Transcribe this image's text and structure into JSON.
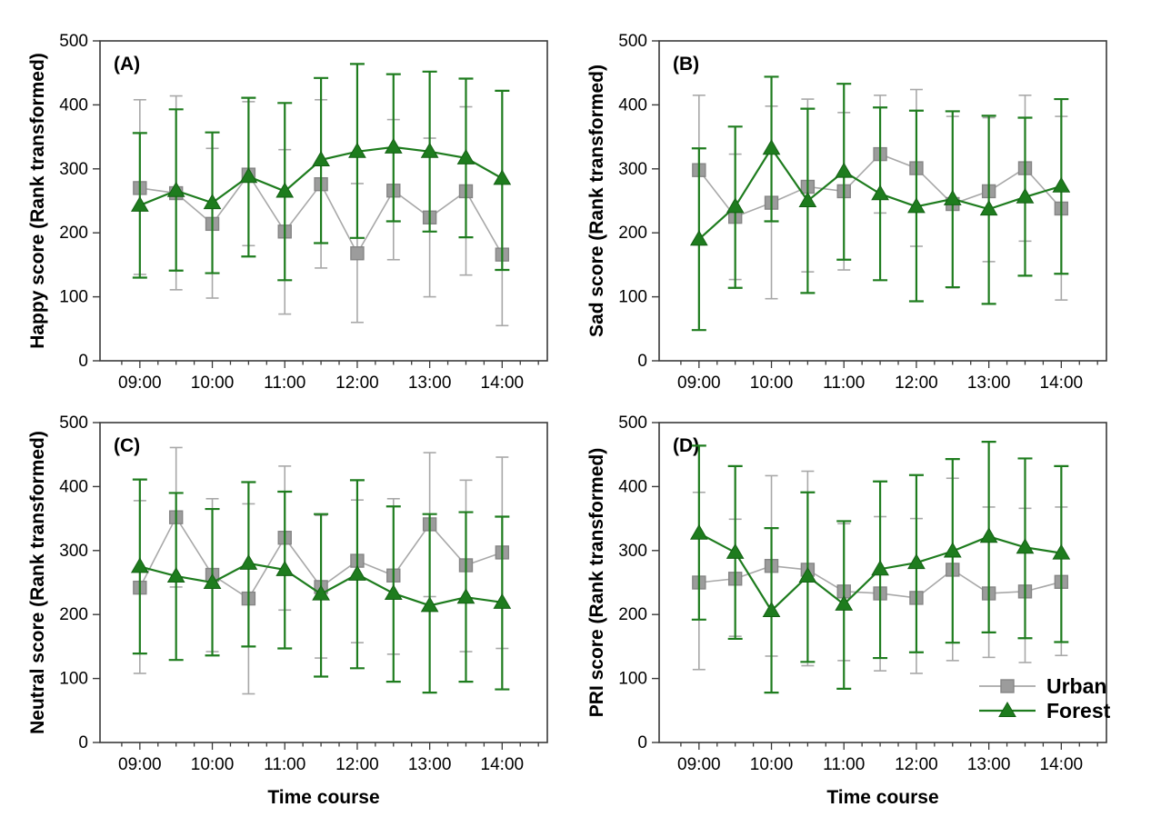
{
  "figure": {
    "background": "#ffffff",
    "x_axis_label": "Time course",
    "y_tick_values": [
      0,
      100,
      200,
      300,
      400,
      500
    ],
    "x_major_tick_labels": [
      "09:00",
      "10:00",
      "11:00",
      "12:00",
      "13:00",
      "14:00"
    ],
    "colors": {
      "urban_marker_fill": "#9c9c9c",
      "urban_marker_edge": "#858585",
      "urban_line": "#a8a8a8",
      "forest_green": "#1e7c1e",
      "forest_edge": "#136113",
      "axis_frame": "#3a3a3a",
      "text": "#000000"
    },
    "legend": {
      "panel": "(D)",
      "items": [
        {
          "label": "Urban",
          "series": "Urban",
          "marker": "square"
        },
        {
          "label": "Forest",
          "series": "Forest",
          "marker": "triangle"
        }
      ]
    }
  },
  "chart_data": [
    {
      "type": "line",
      "panel_label": "(A)",
      "ylabel": "Happy score (Rank transformed)",
      "xlabel": "",
      "ylim": [
        0,
        500
      ],
      "x": [
        "09:00",
        "09:30",
        "10:00",
        "10:30",
        "11:00",
        "11:30",
        "12:00",
        "12:30",
        "13:00",
        "13:30",
        "14:00"
      ],
      "series": [
        {
          "name": "Urban",
          "marker": "square",
          "values": [
            270,
            262,
            214,
            291,
            202,
            276,
            168,
            266,
            224,
            265,
            166
          ],
          "err_upper": [
            408,
            414,
            332,
            405,
            330,
            408,
            277,
            377,
            348,
            397,
            277
          ],
          "err_lower": [
            135,
            111,
            98,
            180,
            73,
            145,
            60,
            158,
            100,
            134,
            55
          ]
        },
        {
          "name": "Forest",
          "marker": "triangle",
          "values": [
            243,
            266,
            247,
            288,
            265,
            314,
            327,
            334,
            327,
            317,
            285
          ],
          "err_upper": [
            356,
            393,
            357,
            411,
            403,
            442,
            464,
            448,
            452,
            441,
            422
          ],
          "err_lower": [
            130,
            141,
            137,
            163,
            126,
            184,
            192,
            218,
            202,
            193,
            142
          ]
        }
      ]
    },
    {
      "type": "line",
      "panel_label": "(B)",
      "ylabel": "Sad score (Rank transformed)",
      "xlabel": "",
      "ylim": [
        0,
        500
      ],
      "x": [
        "09:00",
        "09:30",
        "10:00",
        "10:30",
        "11:00",
        "11:30",
        "12:00",
        "12:30",
        "13:00",
        "13:30",
        "14:00"
      ],
      "series": [
        {
          "name": "Urban",
          "marker": "square",
          "values": [
            298,
            225,
            247,
            272,
            265,
            323,
            301,
            245,
            265,
            301,
            238
          ],
          "err_upper": [
            415,
            323,
            398,
            409,
            388,
            415,
            424,
            382,
            380,
            415,
            382
          ],
          "err_lower": [
            181,
            127,
            97,
            139,
            142,
            231,
            179,
            114,
            155,
            187,
            95
          ]
        },
        {
          "name": "Forest",
          "marker": "triangle",
          "values": [
            190,
            241,
            332,
            250,
            296,
            261,
            241,
            253,
            237,
            256,
            273
          ],
          "err_upper": [
            332,
            366,
            444,
            394,
            433,
            396,
            391,
            390,
            383,
            380,
            409
          ],
          "err_lower": [
            48,
            114,
            218,
            106,
            158,
            126,
            93,
            115,
            89,
            133,
            136
          ]
        }
      ]
    },
    {
      "type": "line",
      "panel_label": "(C)",
      "ylabel": "Neutral score (Rank transformed)",
      "xlabel": "Time course",
      "ylim": [
        0,
        500
      ],
      "x": [
        "09:00",
        "09:30",
        "10:00",
        "10:30",
        "11:00",
        "11:30",
        "12:00",
        "12:30",
        "13:00",
        "13:30",
        "14:00"
      ],
      "series": [
        {
          "name": "Urban",
          "marker": "square",
          "values": [
            242,
            352,
            262,
            225,
            320,
            243,
            284,
            261,
            341,
            277,
            297
          ],
          "err_upper": [
            378,
            461,
            381,
            373,
            432,
            355,
            379,
            381,
            453,
            410,
            446
          ],
          "err_lower": [
            108,
            243,
            142,
            76,
            207,
            132,
            156,
            138,
            228,
            142,
            147
          ]
        },
        {
          "name": "Forest",
          "marker": "triangle",
          "values": [
            275,
            260,
            250,
            280,
            270,
            232,
            263,
            233,
            214,
            227,
            219
          ],
          "err_upper": [
            411,
            390,
            365,
            407,
            392,
            357,
            410,
            369,
            357,
            360,
            353
          ],
          "err_lower": [
            139,
            129,
            136,
            150,
            147,
            103,
            116,
            95,
            78,
            95,
            83
          ]
        }
      ]
    },
    {
      "type": "line",
      "panel_label": "(D)",
      "ylabel": "PRI score (Rank transformed)",
      "xlabel": "Time course",
      "ylim": [
        0,
        500
      ],
      "x": [
        "09:00",
        "09:30",
        "10:00",
        "10:30",
        "11:00",
        "11:30",
        "12:00",
        "12:30",
        "13:00",
        "13:30",
        "14:00"
      ],
      "series": [
        {
          "name": "Urban",
          "marker": "square",
          "values": [
            250,
            256,
            276,
            270,
            236,
            233,
            226,
            270,
            233,
            236,
            251
          ],
          "err_upper": [
            391,
            349,
            417,
            424,
            342,
            353,
            350,
            413,
            368,
            366,
            368
          ],
          "err_lower": [
            114,
            166,
            135,
            120,
            128,
            112,
            108,
            128,
            133,
            125,
            136
          ]
        },
        {
          "name": "Forest",
          "marker": "triangle",
          "values": [
            327,
            297,
            206,
            260,
            216,
            271,
            281,
            299,
            322,
            305,
            296
          ],
          "err_upper": [
            464,
            432,
            335,
            391,
            346,
            408,
            418,
            443,
            470,
            444,
            432
          ],
          "err_lower": [
            192,
            162,
            78,
            126,
            84,
            132,
            141,
            156,
            172,
            163,
            157
          ]
        }
      ]
    }
  ]
}
